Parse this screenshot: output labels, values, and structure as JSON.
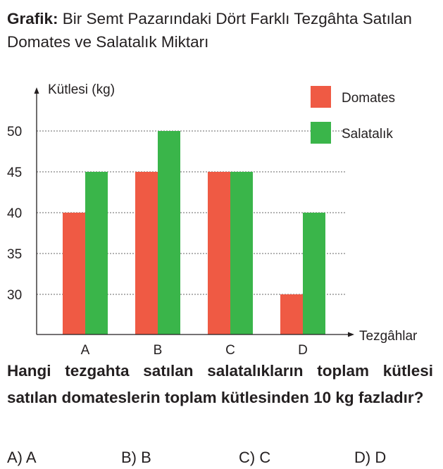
{
  "header": {
    "label": "Grafik:",
    "title": "Bir Semt Pazarındaki Dört Farklı Tezgâhta Satılan Domates ve Salatalık Miktarı"
  },
  "chart_data": {
    "type": "bar",
    "ylabel": "Kütlesi (kg)",
    "xlabel": "Tezgâhlar",
    "categories": [
      "A",
      "B",
      "C",
      "D"
    ],
    "yticks": [
      30,
      35,
      40,
      45,
      50
    ],
    "ylim": [
      25,
      55
    ],
    "grid": "dotted horizontal",
    "legend_position": "top-right",
    "series": [
      {
        "name": "Domates",
        "color": "#ef5a44",
        "values": [
          40,
          45,
          45,
          30
        ]
      },
      {
        "name": "Salatalık",
        "color": "#3ab54a",
        "values": [
          45,
          50,
          45,
          40
        ]
      }
    ]
  },
  "question": "Hangi tezgahta satılan salatalıkların toplam kütlesi satılan domateslerin toplam kütlesinden 10 kg fazladır?",
  "options": [
    "A) A",
    "B) B",
    "C) C",
    "D) D"
  ]
}
